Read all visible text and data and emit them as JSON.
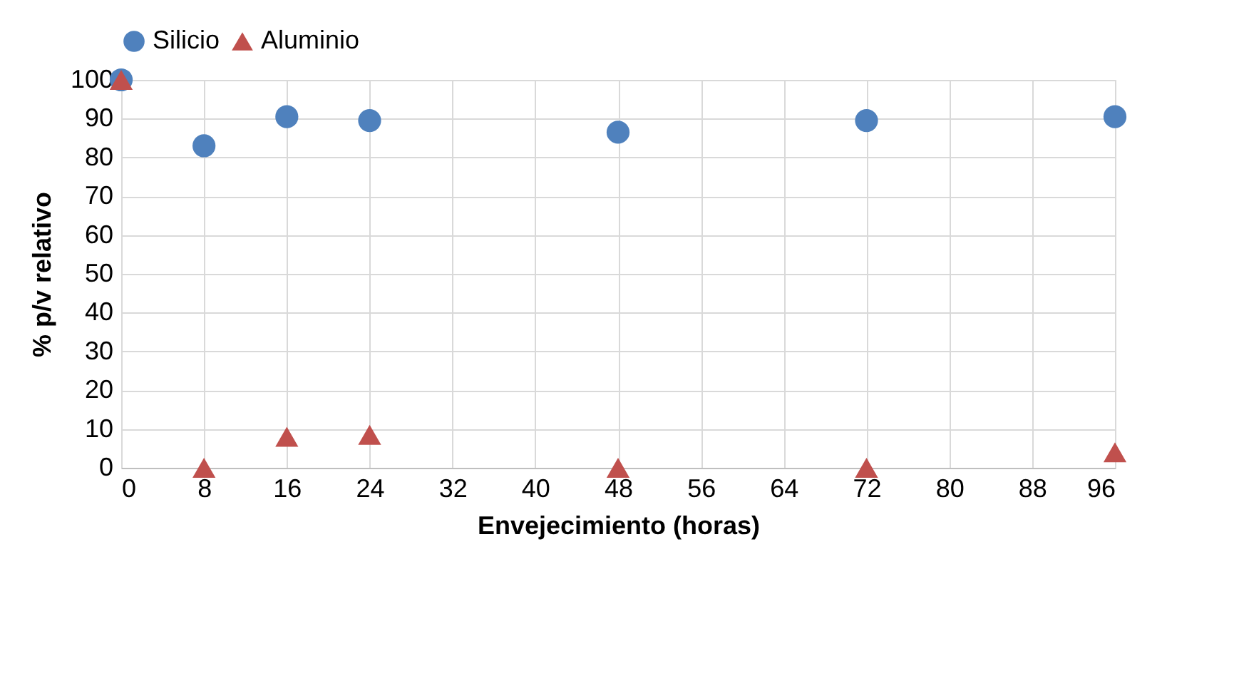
{
  "chart_data": {
    "type": "scatter",
    "xlabel": "Envejecimiento  (horas)",
    "ylabel": "% p/v relativo",
    "x": [
      0,
      8,
      16,
      24,
      48,
      72,
      96
    ],
    "series": [
      {
        "name": "Silicio",
        "color": "#4f81bd",
        "marker": "circle",
        "values": [
          100,
          83,
          90.5,
          89.5,
          86.5,
          89.5,
          90.5
        ]
      },
      {
        "name": "Aluminio",
        "color": "#c0504d",
        "marker": "triangle",
        "values": [
          100,
          0,
          8,
          8.5,
          0,
          0,
          4
        ]
      }
    ],
    "xlim": [
      0,
      96
    ],
    "xticks": [
      0,
      8,
      16,
      24,
      32,
      40,
      48,
      56,
      64,
      72,
      80,
      88,
      96
    ],
    "ylim": [
      0,
      100
    ],
    "yticks": [
      0,
      10,
      20,
      30,
      40,
      50,
      60,
      70,
      80,
      90,
      100
    ],
    "grid": true,
    "legend": "top"
  }
}
